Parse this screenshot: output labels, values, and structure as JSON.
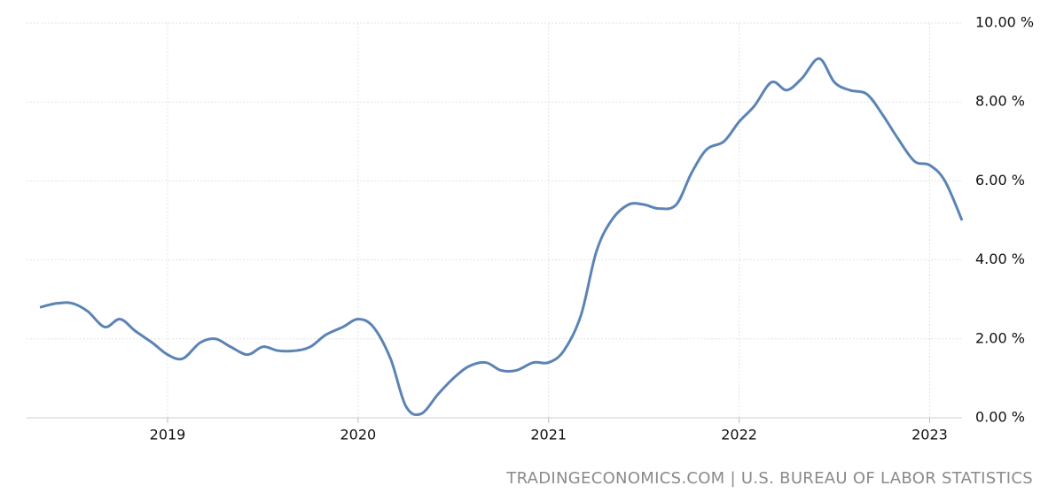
{
  "chart_data": {
    "type": "line",
    "source": "TRADINGECONOMICS.COM | U.S. BUREAU OF LABOR STATISTICS",
    "x": [
      2018.33,
      2018.42,
      2018.5,
      2018.58,
      2018.67,
      2018.75,
      2018.83,
      2018.92,
      2019,
      2019.08,
      2019.17,
      2019.25,
      2019.33,
      2019.42,
      2019.5,
      2019.58,
      2019.67,
      2019.75,
      2019.83,
      2019.92,
      2020,
      2020.08,
      2020.17,
      2020.25,
      2020.33,
      2020.42,
      2020.5,
      2020.58,
      2020.67,
      2020.75,
      2020.83,
      2020.92,
      2021,
      2021.08,
      2021.17,
      2021.25,
      2021.33,
      2021.42,
      2021.5,
      2021.58,
      2021.67,
      2021.75,
      2021.83,
      2021.92,
      2022,
      2022.08,
      2022.17,
      2022.25,
      2022.33,
      2022.42,
      2022.5,
      2022.58,
      2022.67,
      2022.75,
      2022.83,
      2022.92,
      2023,
      2023.08,
      2023.17
    ],
    "values": [
      2.8,
      2.9,
      2.9,
      2.7,
      2.3,
      2.5,
      2.2,
      1.9,
      1.6,
      1.5,
      1.9,
      2.0,
      1.8,
      1.6,
      1.8,
      1.7,
      1.7,
      1.8,
      2.1,
      2.3,
      2.5,
      2.3,
      1.5,
      0.3,
      0.1,
      0.6,
      1.0,
      1.3,
      1.4,
      1.2,
      1.2,
      1.4,
      1.4,
      1.7,
      2.6,
      4.2,
      5.0,
      5.4,
      5.4,
      5.3,
      5.4,
      6.2,
      6.8,
      7.0,
      7.5,
      7.9,
      8.5,
      8.3,
      8.6,
      9.1,
      8.5,
      8.3,
      8.2,
      7.7,
      7.1,
      6.5,
      6.4,
      6.0,
      5.0
    ],
    "color": "#5b84b5",
    "xlim": [
      2018.26,
      2023.17
    ],
    "xticks": [
      2019,
      2020,
      2021,
      2022,
      2023
    ],
    "ylim": [
      0,
      10
    ],
    "yticks": [
      {
        "value": 0,
        "label": "0.00 %"
      },
      {
        "value": 2,
        "label": "2.00 %"
      },
      {
        "value": 4,
        "label": "4.00 %"
      },
      {
        "value": 6,
        "label": "6.00 %"
      },
      {
        "value": 8,
        "label": "8.00 %"
      },
      {
        "value": 10,
        "label": "10.00 %"
      }
    ],
    "grid": true
  }
}
